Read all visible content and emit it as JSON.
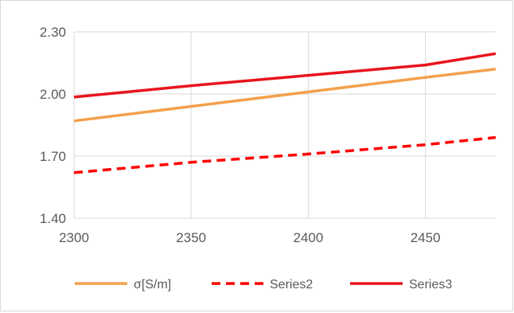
{
  "chart_data": {
    "type": "line",
    "title": "",
    "xlabel": "",
    "ylabel": "",
    "xlim": [
      2300,
      2480
    ],
    "ylim": [
      1.4,
      2.3
    ],
    "x_ticks": [
      2300,
      2350,
      2400,
      2450
    ],
    "y_ticks": [
      1.4,
      1.7,
      2.0,
      2.3
    ],
    "x_tick_labels": [
      "2300",
      "2350",
      "2400",
      "2450"
    ],
    "y_tick_labels": [
      "1.40",
      "1.70",
      "2.00",
      "2.30"
    ],
    "grid": true,
    "legend_position": "bottom",
    "series": [
      {
        "name": "σ[S/m]",
        "color": "#f4a04c",
        "dash": "solid",
        "x": [
          2300,
          2350,
          2400,
          2450,
          2480
        ],
        "y": [
          1.87,
          1.94,
          2.01,
          2.08,
          2.12
        ]
      },
      {
        "name": "Series2",
        "color": "#ff0000",
        "dash": "dashed",
        "x": [
          2300,
          2350,
          2400,
          2450,
          2480
        ],
        "y": [
          1.62,
          1.67,
          1.71,
          1.755,
          1.79
        ]
      },
      {
        "name": "Series3",
        "color": "#e8141c",
        "dash": "solid",
        "x": [
          2300,
          2350,
          2400,
          2450,
          2480
        ],
        "y": [
          1.985,
          2.04,
          2.09,
          2.14,
          2.195
        ]
      }
    ]
  }
}
